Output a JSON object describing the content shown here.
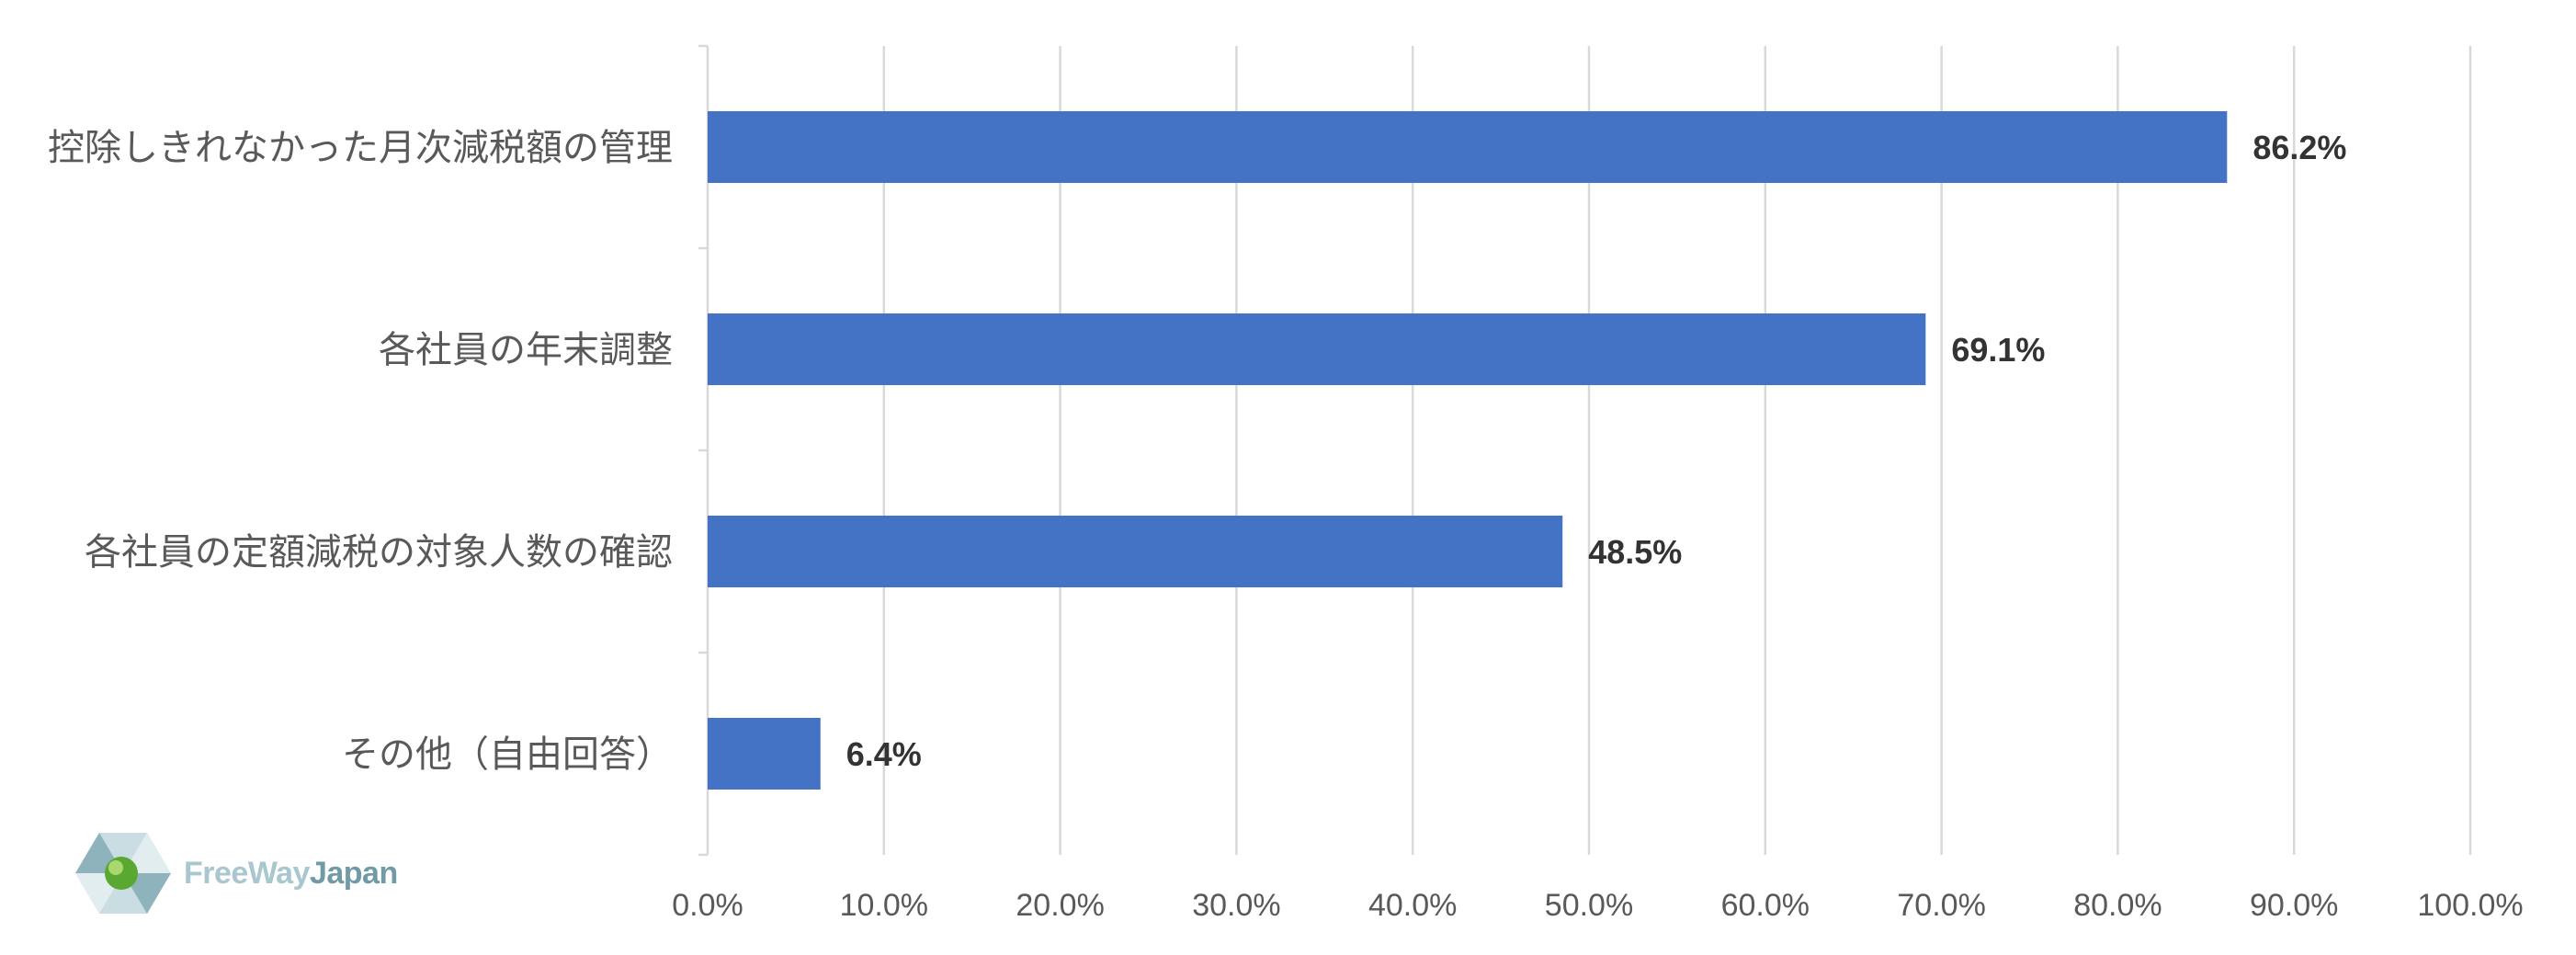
{
  "chart_data": {
    "type": "bar",
    "orientation": "horizontal",
    "categories": [
      "控除しきれなかった月次減税額の管理",
      "各社員の年末調整",
      "各社員の定額減税の対象人数の確認",
      "その他（自由回答）"
    ],
    "values": [
      86.2,
      69.1,
      48.5,
      6.4
    ],
    "value_labels": [
      "86.2%",
      "69.1%",
      "48.5%",
      "6.4%"
    ],
    "x_ticks": [
      "0.0%",
      "10.0%",
      "20.0%",
      "30.0%",
      "40.0%",
      "50.0%",
      "60.0%",
      "70.0%",
      "80.0%",
      "90.0%",
      "100.0%"
    ],
    "xlim": [
      0,
      100
    ],
    "grid": "vertical",
    "bar_color": "#4472c4",
    "title": "",
    "xlabel": "",
    "ylabel": ""
  },
  "logo": {
    "text_free_way": "FreeWay",
    "text_japan": "Japan"
  }
}
